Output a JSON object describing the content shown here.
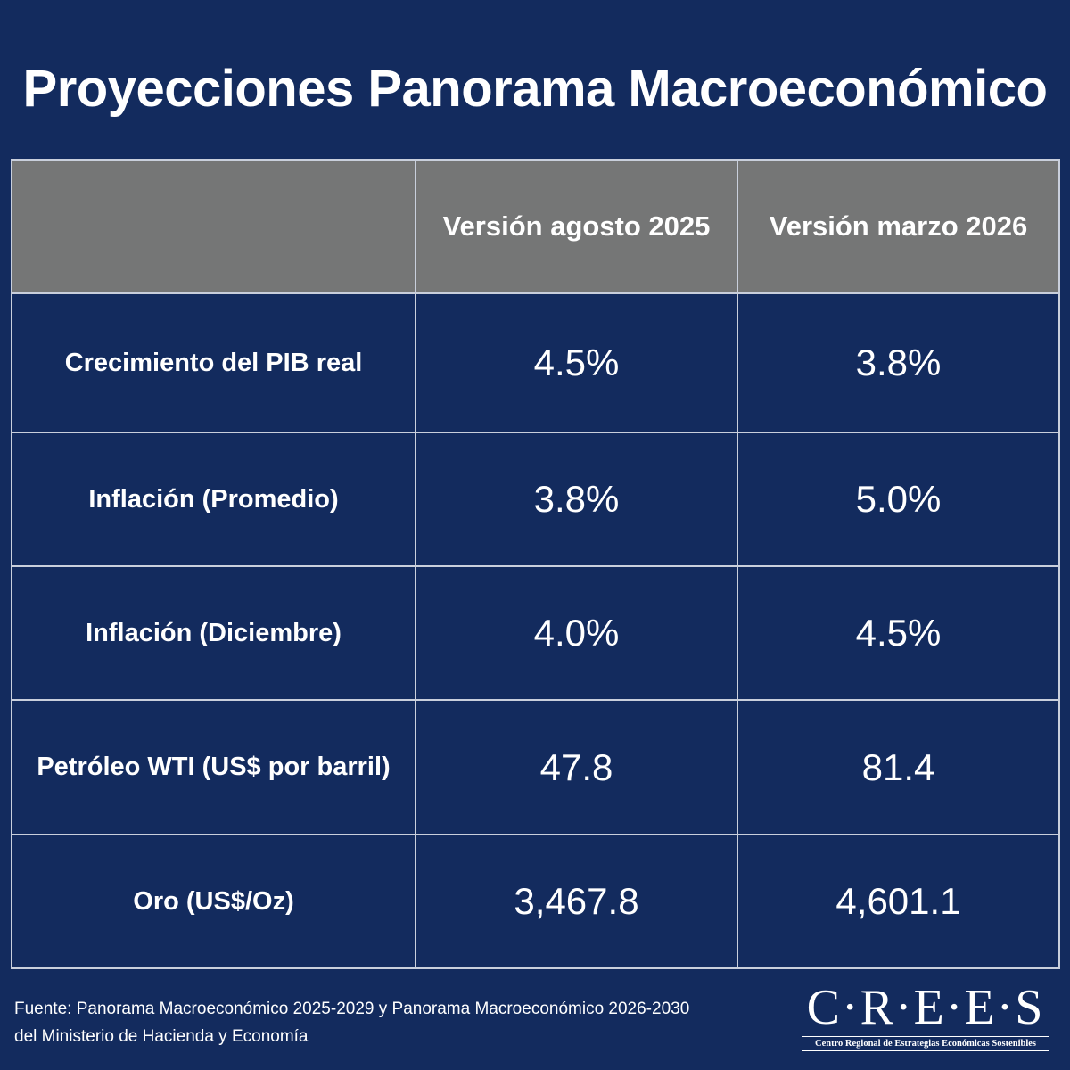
{
  "title": "Proyecciones Panorama Macroeconómico",
  "table": {
    "header": [
      "",
      "Versión agosto 2025",
      "Versión marzo 2026"
    ],
    "rows": [
      {
        "label": "Crecimiento del PIB real",
        "v2025": "4.5%",
        "v2026": "3.8%"
      },
      {
        "label": "Inflación (Promedio)",
        "v2025": "3.8%",
        "v2026": "5.0%"
      },
      {
        "label": "Inflación (Diciembre)",
        "v2025": "4.0%",
        "v2026": "4.5%"
      },
      {
        "label": "Petróleo WTI (US$ por barril)",
        "v2025": "47.8",
        "v2026": "81.4"
      },
      {
        "label": "Oro (US$/Oz)",
        "v2025": "3,467.8",
        "v2026": "4,601.1"
      }
    ]
  },
  "footer": {
    "source_line1": "Fuente: Panorama Macroeconómico 2025-2029 y Panorama Macroeconómico 2026-2030",
    "source_line2": "del Ministerio de Hacienda y Economía"
  },
  "logo": {
    "mark": "C·R·E·E·S",
    "subtitle": "Centro Regional de Estrategias Económicas Sostenibles"
  },
  "colors": {
    "background": "#132b5e",
    "header_fill": "#757676",
    "grid_lines": "#c9cfdc",
    "text": "#ffffff"
  }
}
